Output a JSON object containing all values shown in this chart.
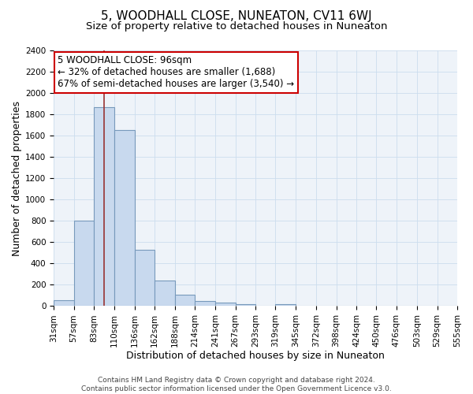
{
  "title": "5, WOODHALL CLOSE, NUNEATON, CV11 6WJ",
  "subtitle": "Size of property relative to detached houses in Nuneaton",
  "xlabel": "Distribution of detached houses by size in Nuneaton",
  "ylabel": "Number of detached properties",
  "bar_color": "#c8d9ee",
  "bar_edge_color": "#7799bb",
  "background_color": "#ffffff",
  "grid_color": "#ccddee",
  "bin_labels": [
    "31sqm",
    "57sqm",
    "83sqm",
    "110sqm",
    "136sqm",
    "162sqm",
    "188sqm",
    "214sqm",
    "241sqm",
    "267sqm",
    "293sqm",
    "319sqm",
    "345sqm",
    "372sqm",
    "398sqm",
    "424sqm",
    "450sqm",
    "476sqm",
    "503sqm",
    "529sqm",
    "555sqm"
  ],
  "bar_values": [
    55,
    800,
    1870,
    1650,
    530,
    240,
    110,
    50,
    30,
    20,
    0,
    20,
    0,
    0,
    0,
    0,
    0,
    0,
    0,
    0
  ],
  "ylim": [
    0,
    2400
  ],
  "yticks": [
    0,
    200,
    400,
    600,
    800,
    1000,
    1200,
    1400,
    1600,
    1800,
    2000,
    2200,
    2400
  ],
  "red_line_x": 96,
  "bin_edges_sqm": [
    31,
    57,
    83,
    110,
    136,
    162,
    188,
    214,
    241,
    267,
    293,
    319,
    345,
    372,
    398,
    424,
    450,
    476,
    503,
    529,
    555
  ],
  "annotation_title": "5 WOODHALL CLOSE: 96sqm",
  "annotation_line1": "← 32% of detached houses are smaller (1,688)",
  "annotation_line2": "67% of semi-detached houses are larger (3,540) →",
  "annotation_box_color": "#ffffff",
  "annotation_box_edge_color": "#cc0000",
  "footer_line1": "Contains HM Land Registry data © Crown copyright and database right 2024.",
  "footer_line2": "Contains public sector information licensed under the Open Government Licence v3.0.",
  "title_fontsize": 11,
  "subtitle_fontsize": 9.5,
  "axis_label_fontsize": 9,
  "tick_fontsize": 7.5,
  "annotation_fontsize": 8.5,
  "footer_fontsize": 6.5
}
